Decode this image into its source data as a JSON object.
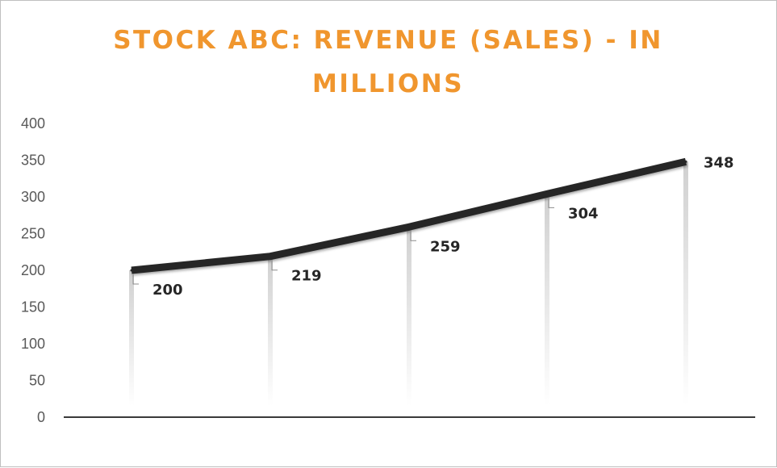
{
  "chart_data": {
    "type": "line",
    "title": "STOCK ABC:  REVENUE (SALES) - IN MILLIONS",
    "xlabel": "",
    "ylabel": "",
    "ylim": [
      0,
      400
    ],
    "yticks": [
      "0",
      "50",
      "100",
      "150",
      "200",
      "250",
      "300",
      "350",
      "400"
    ],
    "categories": [
      "",
      "",
      "",
      "",
      ""
    ],
    "series": [
      {
        "values": [
          200,
          219,
          259,
          304,
          348
        ],
        "labels": [
          "200",
          "219",
          "259",
          "304",
          "348"
        ]
      }
    ],
    "grid": false,
    "legend": "none",
    "colors": {
      "title": "#f0962e",
      "line": "#262626",
      "axis": "#3a3a3a",
      "tick_text": "#595959",
      "drop_line": "#d9d9d9"
    }
  }
}
